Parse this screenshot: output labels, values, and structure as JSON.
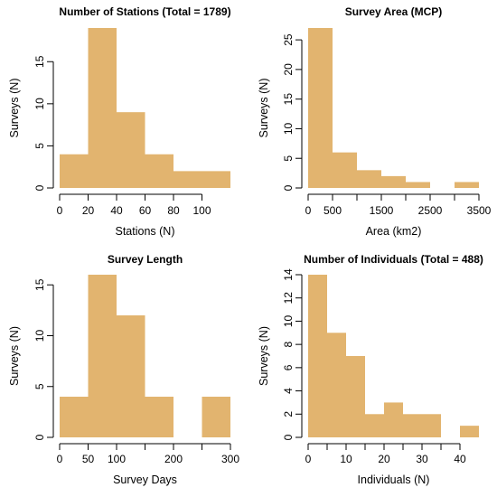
{
  "chart_data": [
    {
      "type": "bar",
      "title": "Number of Stations (Total = 1789)",
      "xlabel": "Stations (N)",
      "ylabel": "Surveys (N)",
      "bar_color": "#E2B46F",
      "xlim": [
        0,
        120
      ],
      "ylim": [
        0,
        19
      ],
      "xticks": [
        0,
        20,
        40,
        60,
        80,
        100
      ],
      "xtick_labels": [
        "0",
        "20",
        "40",
        "60",
        "80",
        "100"
      ],
      "yticks": [
        0,
        5,
        10,
        15
      ],
      "ytick_labels": [
        "0",
        "5",
        "10",
        "15"
      ],
      "bins": [
        {
          "x0": 0,
          "x1": 20,
          "value": 4
        },
        {
          "x0": 20,
          "x1": 40,
          "value": 19
        },
        {
          "x0": 40,
          "x1": 60,
          "value": 9
        },
        {
          "x0": 60,
          "x1": 80,
          "value": 4
        },
        {
          "x0": 80,
          "x1": 120,
          "value": 2
        }
      ]
    },
    {
      "type": "bar",
      "title": "Survey Area (MCP)",
      "xlabel": "Area (km2)",
      "ylabel": "Surveys (N)",
      "bar_color": "#E2B46F",
      "xlim": [
        0,
        3500
      ],
      "ylim": [
        0,
        27
      ],
      "xticks": [
        0,
        500,
        1000,
        1500,
        2000,
        2500,
        3000,
        3500
      ],
      "xtick_labels": [
        "0",
        "500",
        "",
        "1500",
        "",
        "2500",
        "",
        "3500"
      ],
      "yticks": [
        0,
        5,
        10,
        15,
        20,
        25
      ],
      "ytick_labels": [
        "0",
        "5",
        "10",
        "15",
        "20",
        "25"
      ],
      "bins": [
        {
          "x0": 0,
          "x1": 500,
          "value": 27
        },
        {
          "x0": 500,
          "x1": 1000,
          "value": 6
        },
        {
          "x0": 1000,
          "x1": 1500,
          "value": 3
        },
        {
          "x0": 1500,
          "x1": 2000,
          "value": 2
        },
        {
          "x0": 2000,
          "x1": 2500,
          "value": 1
        },
        {
          "x0": 3000,
          "x1": 3500,
          "value": 1
        }
      ]
    },
    {
      "type": "bar",
      "title": "Survey Length",
      "xlabel": "Survey Days",
      "ylabel": "Surveys (N)",
      "bar_color": "#E2B46F",
      "xlim": [
        0,
        300
      ],
      "ylim": [
        0,
        16
      ],
      "xticks": [
        0,
        50,
        100,
        150,
        200,
        250,
        300
      ],
      "xtick_labels": [
        "0",
        "50",
        "100",
        "",
        "200",
        "",
        "300"
      ],
      "yticks": [
        0,
        5,
        10,
        15
      ],
      "ytick_labels": [
        "0",
        "5",
        "10",
        "15"
      ],
      "bins": [
        {
          "x0": 0,
          "x1": 50,
          "value": 4
        },
        {
          "x0": 50,
          "x1": 100,
          "value": 16
        },
        {
          "x0": 100,
          "x1": 150,
          "value": 12
        },
        {
          "x0": 150,
          "x1": 200,
          "value": 4
        },
        {
          "x0": 250,
          "x1": 300,
          "value": 4
        }
      ]
    },
    {
      "type": "bar",
      "title": "Number of Individuals (Total = 488)",
      "xlabel": "Individuals (N)",
      "ylabel": "Surveys (N)",
      "bar_color": "#E2B46F",
      "xlim": [
        0,
        45
      ],
      "ylim": [
        0,
        14
      ],
      "xticks": [
        0,
        5,
        10,
        15,
        20,
        25,
        30,
        35,
        40
      ],
      "xtick_labels": [
        "0",
        "",
        "10",
        "",
        "20",
        "",
        "30",
        "",
        "40"
      ],
      "yticks": [
        0,
        2,
        4,
        6,
        8,
        10,
        12,
        14
      ],
      "ytick_labels": [
        "0",
        "2",
        "4",
        "6",
        "8",
        "10",
        "12",
        "14"
      ],
      "bins": [
        {
          "x0": 0,
          "x1": 5,
          "value": 14
        },
        {
          "x0": 5,
          "x1": 10,
          "value": 9
        },
        {
          "x0": 10,
          "x1": 15,
          "value": 7
        },
        {
          "x0": 15,
          "x1": 20,
          "value": 2
        },
        {
          "x0": 20,
          "x1": 25,
          "value": 3
        },
        {
          "x0": 25,
          "x1": 35,
          "value": 2
        },
        {
          "x0": 40,
          "x1": 45,
          "value": 1
        }
      ]
    }
  ]
}
